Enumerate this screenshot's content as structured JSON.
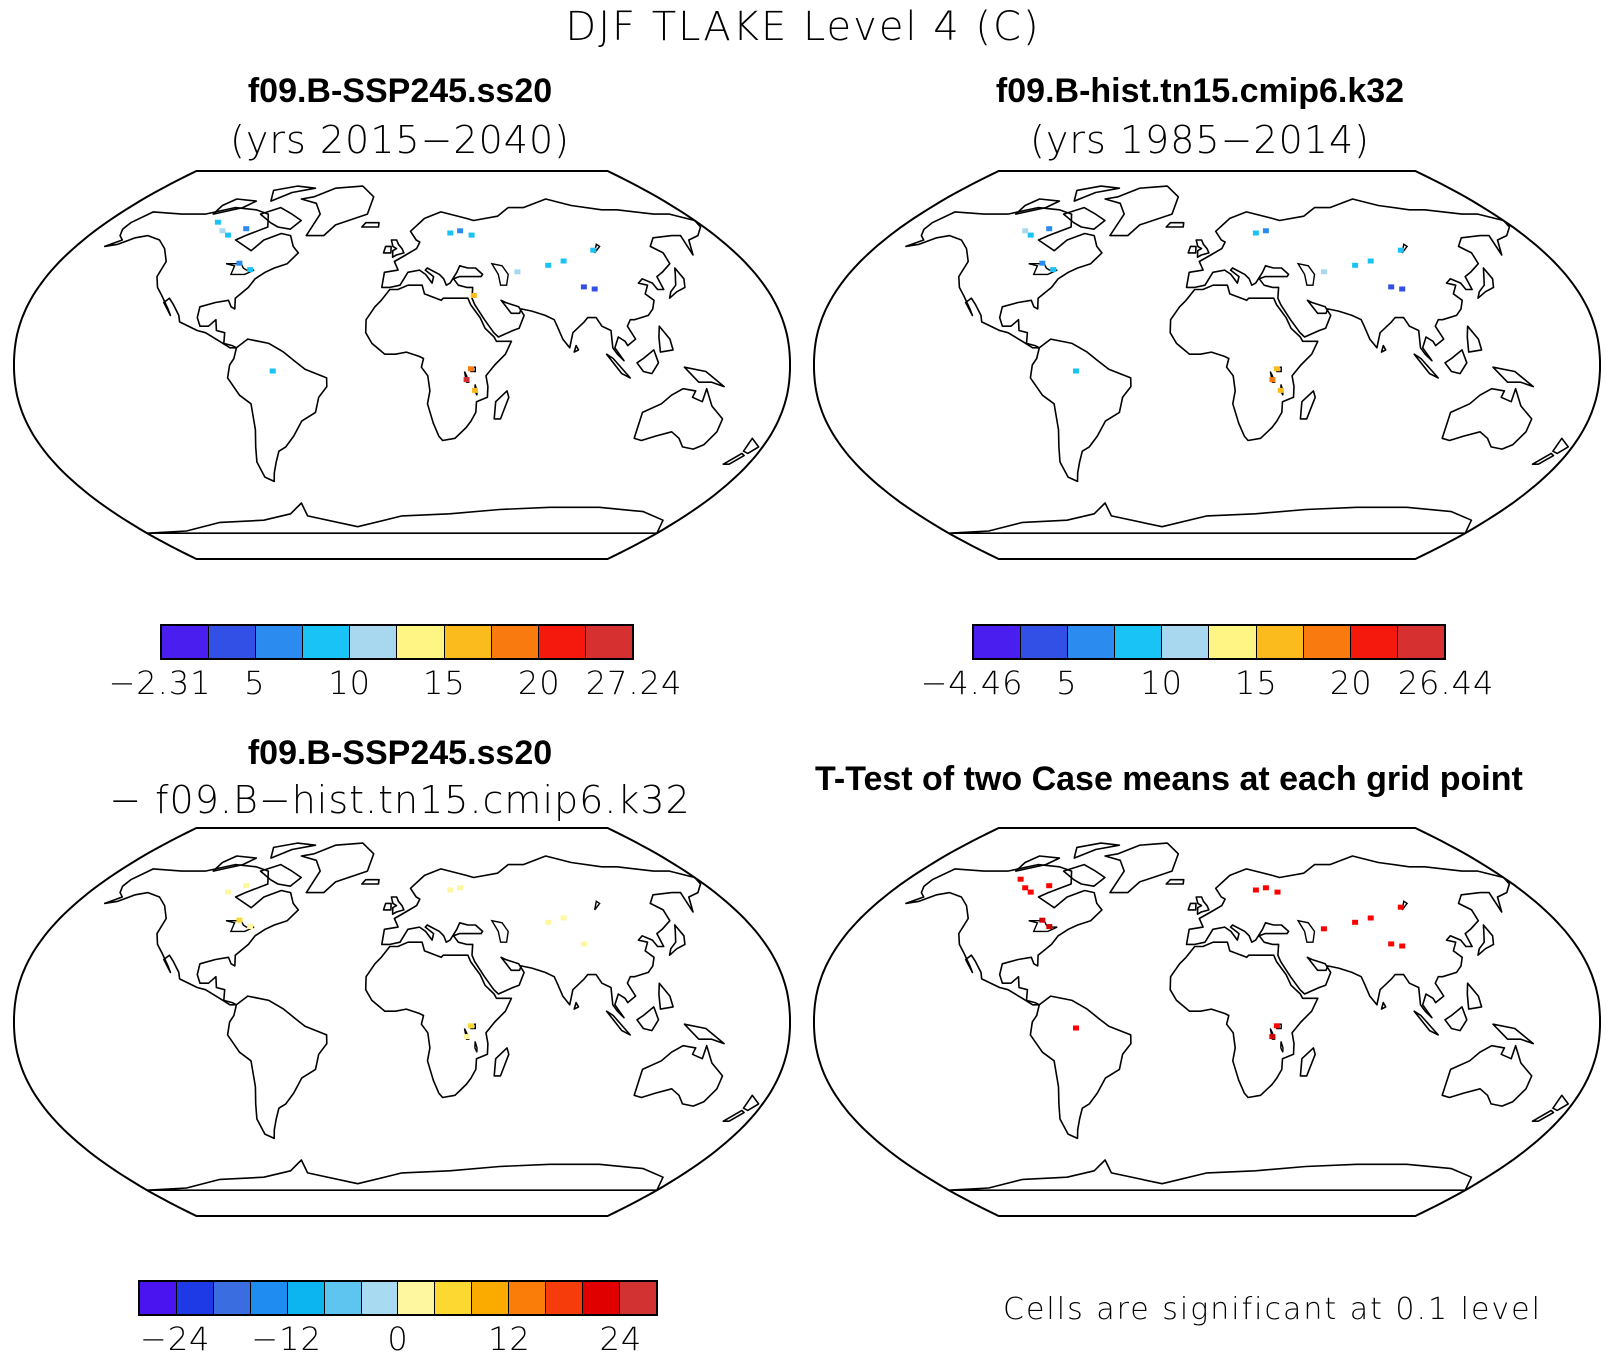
{
  "title": "DJF TLAKE Level 4 (C)",
  "panels": {
    "top_left": {
      "case": "f09.B-SSP245.ss20",
      "years": "(yrs 2015−2040)",
      "colorbar": {
        "colors": [
          "#4b1ef0",
          "#3350e6",
          "#2b8bee",
          "#19c3f5",
          "#a8d8f0",
          "#fff585",
          "#fbbb1c",
          "#f97a0f",
          "#f5180c",
          "#d63030"
        ],
        "labels": [
          "−2.31",
          "5",
          "10",
          "15",
          "20",
          "27.24"
        ]
      }
    },
    "top_right": {
      "case": "f09.B-hist.tn15.cmip6.k32",
      "years": "(yrs 1985−2014)",
      "colorbar": {
        "colors": [
          "#4b1ef0",
          "#3350e6",
          "#2b8bee",
          "#19c3f5",
          "#a8d8f0",
          "#fff585",
          "#fbbb1c",
          "#f97a0f",
          "#f5180c",
          "#d63030"
        ],
        "labels": [
          "−4.46",
          "5",
          "10",
          "15",
          "20",
          "26.44"
        ]
      }
    },
    "bottom_left": {
      "case": "f09.B-SSP245.ss20",
      "diff_line": "− f09.B−hist.tn15.cmip6.k32",
      "colorbar": {
        "colors": [
          "#4a14f0",
          "#1e3ae6",
          "#3a6ee0",
          "#1e8cf0",
          "#0cb4f0",
          "#5ec4f0",
          "#a8daf2",
          "#fff7a0",
          "#fcd830",
          "#fbaa00",
          "#fa7d0a",
          "#f53c0a",
          "#e00000",
          "#d23232"
        ],
        "labels": [
          "−24",
          "−12",
          "0",
          "12",
          "24"
        ]
      }
    },
    "bottom_right": {
      "title": "T-Test of two Case means at each grid point",
      "note": "Cells are significant at 0.1 level"
    }
  },
  "features": {
    "top_left": [
      {
        "lon": -100,
        "lat": 60,
        "c": "#19c3f5"
      },
      {
        "lon": -92,
        "lat": 63,
        "c": "#2b8bee"
      },
      {
        "lon": -105,
        "lat": 62,
        "c": "#a8d8f0"
      },
      {
        "lon": -85,
        "lat": 47,
        "c": "#2b8bee"
      },
      {
        "lon": -78,
        "lat": 44,
        "c": "#19c3f5"
      },
      {
        "lon": -112,
        "lat": 66,
        "c": "#19c3f5"
      },
      {
        "lon": 28,
        "lat": 61,
        "c": "#19c3f5"
      },
      {
        "lon": 34,
        "lat": 62,
        "c": "#2b8bee"
      },
      {
        "lon": 40,
        "lat": 60,
        "c": "#19c3f5"
      },
      {
        "lon": 104,
        "lat": 53,
        "c": "#19c3f5"
      },
      {
        "lon": 85,
        "lat": 48,
        "c": "#19c3f5"
      },
      {
        "lon": 90,
        "lat": 36,
        "c": "#3350e6"
      },
      {
        "lon": 95,
        "lat": 35,
        "c": "#3350e6"
      },
      {
        "lon": 59,
        "lat": 43,
        "c": "#a8d8f0"
      },
      {
        "lon": 76,
        "lat": 46,
        "c": "#19c3f5"
      },
      {
        "lon": 32,
        "lat": -2,
        "c": "#f97a0f"
      },
      {
        "lon": 30,
        "lat": -7,
        "c": "#d63030"
      },
      {
        "lon": 34,
        "lat": -12,
        "c": "#fbbb1c"
      },
      {
        "lon": 35,
        "lat": 32,
        "c": "#fbbb1c"
      },
      {
        "lon": -60,
        "lat": -3,
        "c": "#19c3f5"
      }
    ],
    "top_right": [
      {
        "lon": -100,
        "lat": 60,
        "c": "#19c3f5"
      },
      {
        "lon": -92,
        "lat": 63,
        "c": "#2b8bee"
      },
      {
        "lon": -105,
        "lat": 62,
        "c": "#a8d8f0"
      },
      {
        "lon": -85,
        "lat": 47,
        "c": "#2b8bee"
      },
      {
        "lon": -78,
        "lat": 44,
        "c": "#19c3f5"
      },
      {
        "lon": 28,
        "lat": 61,
        "c": "#19c3f5"
      },
      {
        "lon": 34,
        "lat": 62,
        "c": "#2b8bee"
      },
      {
        "lon": 104,
        "lat": 53,
        "c": "#19c3f5"
      },
      {
        "lon": 85,
        "lat": 48,
        "c": "#19c3f5"
      },
      {
        "lon": 90,
        "lat": 36,
        "c": "#3350e6"
      },
      {
        "lon": 95,
        "lat": 35,
        "c": "#3350e6"
      },
      {
        "lon": 59,
        "lat": 43,
        "c": "#a8d8f0"
      },
      {
        "lon": 76,
        "lat": 46,
        "c": "#19c3f5"
      },
      {
        "lon": 32,
        "lat": -2,
        "c": "#fbbb1c"
      },
      {
        "lon": 30,
        "lat": -7,
        "c": "#f97a0f"
      },
      {
        "lon": 34,
        "lat": -12,
        "c": "#fbbb1c"
      },
      {
        "lon": -60,
        "lat": -3,
        "c": "#19c3f5"
      }
    ],
    "bottom_left": [
      {
        "lon": -100,
        "lat": 60,
        "c": "#fff7a0"
      },
      {
        "lon": -92,
        "lat": 63,
        "c": "#fff7a0"
      },
      {
        "lon": -85,
        "lat": 47,
        "c": "#fcd830"
      },
      {
        "lon": -78,
        "lat": 44,
        "c": "#fff7a0"
      },
      {
        "lon": 28,
        "lat": 61,
        "c": "#fff7a0"
      },
      {
        "lon": 34,
        "lat": 62,
        "c": "#fff7a0"
      },
      {
        "lon": 85,
        "lat": 48,
        "c": "#fff7a0"
      },
      {
        "lon": 90,
        "lat": 36,
        "c": "#fff7a0"
      },
      {
        "lon": 76,
        "lat": 46,
        "c": "#fff7a0"
      },
      {
        "lon": 32,
        "lat": -2,
        "c": "#fcd830"
      },
      {
        "lon": 30,
        "lat": -7,
        "c": "#fff7a0"
      }
    ],
    "bottom_right": [
      {
        "lon": -100,
        "lat": 60,
        "c": "#ff0000"
      },
      {
        "lon": -92,
        "lat": 63,
        "c": "#ff0000"
      },
      {
        "lon": -105,
        "lat": 62,
        "c": "#ff0000"
      },
      {
        "lon": -85,
        "lat": 47,
        "c": "#d00000"
      },
      {
        "lon": -80,
        "lat": 44,
        "c": "#d00000"
      },
      {
        "lon": -112,
        "lat": 66,
        "c": "#ff0000"
      },
      {
        "lon": 28,
        "lat": 61,
        "c": "#ff0000"
      },
      {
        "lon": 34,
        "lat": 62,
        "c": "#ff0000"
      },
      {
        "lon": 40,
        "lat": 60,
        "c": "#ff0000"
      },
      {
        "lon": 104,
        "lat": 53,
        "c": "#ff0000"
      },
      {
        "lon": 85,
        "lat": 48,
        "c": "#ff0000"
      },
      {
        "lon": 90,
        "lat": 36,
        "c": "#ff0000"
      },
      {
        "lon": 76,
        "lat": 46,
        "c": "#ff0000"
      },
      {
        "lon": 59,
        "lat": 43,
        "c": "#ff0000"
      },
      {
        "lon": 32,
        "lat": -2,
        "c": "#ff0000"
      },
      {
        "lon": 30,
        "lat": -7,
        "c": "#d00000"
      },
      {
        "lon": -60,
        "lat": -3,
        "c": "#ff0000"
      },
      {
        "lon": 95,
        "lat": 35,
        "c": "#ff0000"
      }
    ]
  }
}
